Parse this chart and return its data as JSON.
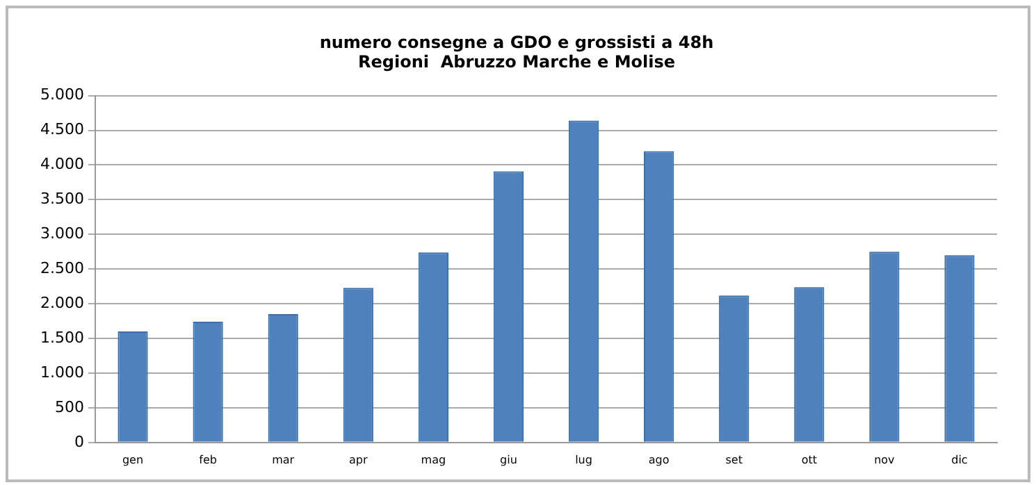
{
  "chart_data": {
    "type": "bar",
    "title": [
      "numero consegne a GDO e grossisti a 48h",
      "Regioni  Abruzzo Marche e Molise"
    ],
    "categories": [
      "gen",
      "feb",
      "mar",
      "apr",
      "mag",
      "giu",
      "lug",
      "ago",
      "set",
      "ott",
      "nov",
      "dic"
    ],
    "values": [
      1600,
      1740,
      1850,
      2230,
      2740,
      3910,
      4640,
      4200,
      2120,
      2240,
      2750,
      2700
    ],
    "color": "#4f81bd",
    "ylim": [
      0,
      5000
    ],
    "yticks": [
      {
        "value": 0,
        "label": "0"
      },
      {
        "value": 500,
        "label": "500"
      },
      {
        "value": 1000,
        "label": "1.000"
      },
      {
        "value": 1500,
        "label": "1.500"
      },
      {
        "value": 2000,
        "label": "2.000"
      },
      {
        "value": 2500,
        "label": "2.500"
      },
      {
        "value": 3000,
        "label": "3.000"
      },
      {
        "value": 3500,
        "label": "3.500"
      },
      {
        "value": 4000,
        "label": "4.000"
      },
      {
        "value": 4500,
        "label": "4.500"
      },
      {
        "value": 5000,
        "label": "5.000"
      }
    ],
    "grid": "y",
    "legend": false
  }
}
